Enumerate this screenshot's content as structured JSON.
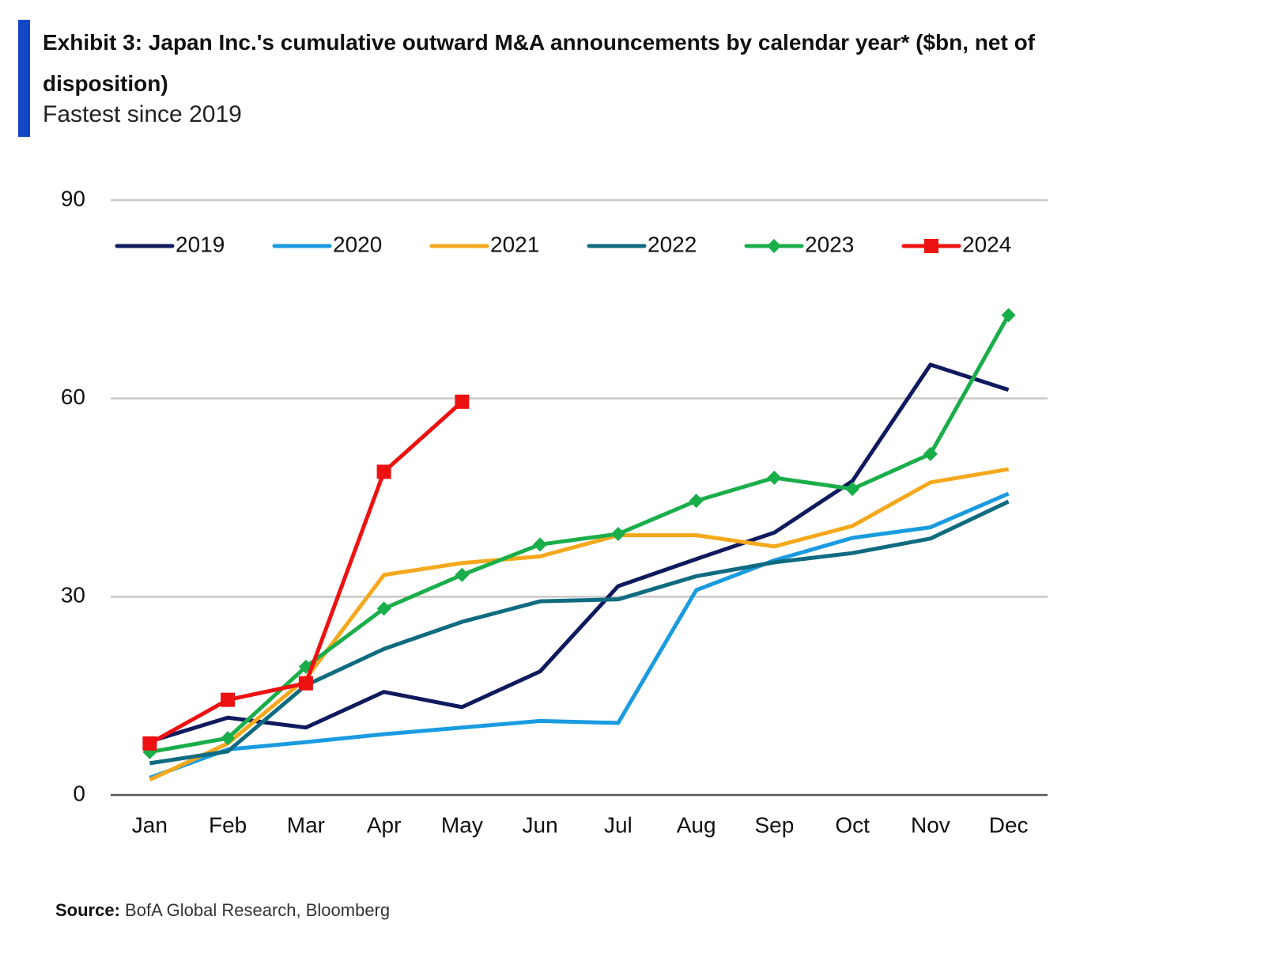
{
  "chart_data": {
    "type": "line",
    "title": "Exhibit 3: Japan Inc.'s cumulative outward M&A announcements by calendar year* ($bn, net of disposition)",
    "subtitle": "Fastest since 2019",
    "source_label": "Source:",
    "source_text": "BofA Global Research, Bloomberg",
    "categories": [
      "Jan",
      "Feb",
      "Mar",
      "Apr",
      "May",
      "Jun",
      "Jul",
      "Aug",
      "Sep",
      "Oct",
      "Nov",
      "Dec"
    ],
    "series": [
      {
        "name": "2019",
        "color": "#0f1a5e",
        "marker": "none",
        "values": [
          8.1,
          11.7,
          10.2,
          15.6,
          13.3,
          18.7,
          31.6,
          35.7,
          39.7,
          47.5,
          65.1,
          61.3
        ]
      },
      {
        "name": "2020",
        "color": "#1a9be0",
        "marker": "none",
        "values": [
          2.6,
          6.9,
          8.0,
          9.2,
          10.2,
          11.2,
          10.9,
          31.0,
          35.5,
          38.9,
          40.5,
          45.6
        ]
      },
      {
        "name": "2021",
        "color": "#f5a81c",
        "marker": "none",
        "values": [
          2.3,
          7.8,
          17.6,
          33.3,
          35.1,
          36.1,
          39.3,
          39.3,
          37.6,
          40.7,
          47.3,
          49.3
        ]
      },
      {
        "name": "2022",
        "color": "#0f6b80",
        "marker": "none",
        "values": [
          4.8,
          6.6,
          16.6,
          22.1,
          26.2,
          29.3,
          29.6,
          33.1,
          35.2,
          36.6,
          38.8,
          44.4
        ]
      },
      {
        "name": "2023",
        "color": "#1aae4a",
        "marker": "diamond",
        "values": [
          6.5,
          8.6,
          19.4,
          28.2,
          33.3,
          37.9,
          39.5,
          44.5,
          48.0,
          46.3,
          51.6,
          72.6
        ]
      },
      {
        "name": "2024",
        "color": "#ee1111",
        "marker": "square",
        "values": [
          7.8,
          14.4,
          16.9,
          48.9,
          59.5,
          null,
          null,
          null,
          null,
          null,
          null,
          null
        ]
      }
    ],
    "ylim": [
      0,
      90
    ],
    "yticks": [
      0,
      30,
      60,
      90
    ],
    "grid": true,
    "legend": "top"
  }
}
